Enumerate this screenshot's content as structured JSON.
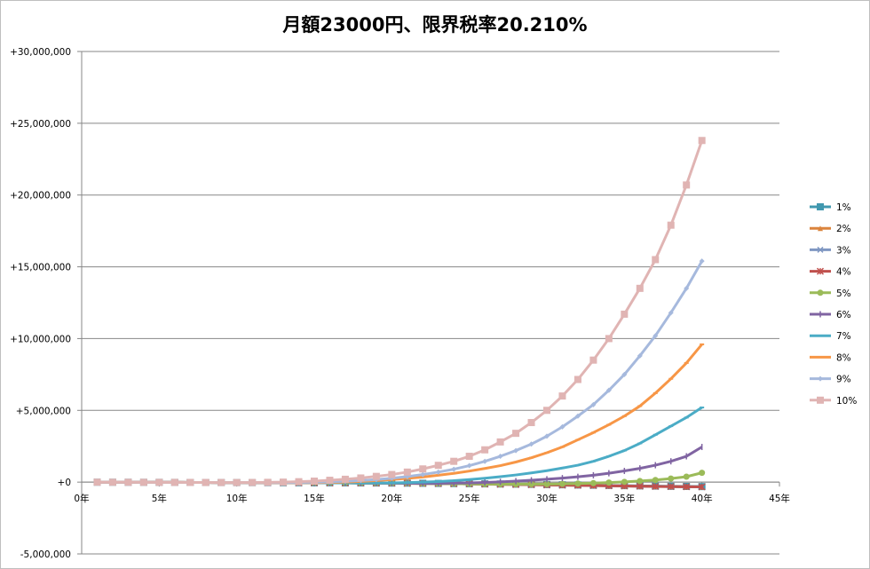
{
  "chart_data": {
    "type": "line",
    "title": "月額23000円、限界税率20.210%",
    "x": [
      1,
      2,
      3,
      4,
      5,
      6,
      7,
      8,
      9,
      10,
      11,
      12,
      13,
      14,
      15,
      16,
      17,
      18,
      19,
      20,
      21,
      22,
      23,
      24,
      25,
      26,
      27,
      28,
      29,
      30,
      31,
      32,
      33,
      34,
      35,
      36,
      37,
      38,
      39,
      40
    ],
    "xlim": [
      0,
      45
    ],
    "x_ticks": [
      0,
      5,
      10,
      15,
      20,
      25,
      30,
      35,
      40,
      45
    ],
    "x_tick_labels": [
      "0年",
      "5年",
      "10年",
      "15年",
      "20年",
      "25年",
      "30年",
      "35年",
      "40年",
      "45年"
    ],
    "ylim": [
      -5000000,
      30000000
    ],
    "y_ticks": [
      -5000000,
      0,
      5000000,
      10000000,
      15000000,
      20000000,
      25000000,
      30000000
    ],
    "y_tick_labels": [
      "-5,000,000",
      "+0",
      "+5,000,000",
      "+10,000,000",
      "+15,000,000",
      "+20,000,000",
      "+25,000,000",
      "+30,000,000"
    ],
    "grid": "horizontal",
    "legend_position": "right",
    "series": [
      {
        "name": "1%",
        "color": "#4198AF",
        "marker": "square",
        "values": [
          -3000,
          -6000,
          -9000,
          -12000,
          -15000,
          -18000,
          -21000,
          -24000,
          -27000,
          -30000,
          -33000,
          -36000,
          -39000,
          -42000,
          -45000,
          -48000,
          -51000,
          -55000,
          -60000,
          -65000,
          -70000,
          -80000,
          -90000,
          -100000,
          -110000,
          -120000,
          -130000,
          -140000,
          -155000,
          -170000,
          -185000,
          -200000,
          -215000,
          -230000,
          -245000,
          -260000,
          -275000,
          -290000,
          -300000,
          -310000
        ]
      },
      {
        "name": "2%",
        "color": "#DB843D",
        "marker": "triangle",
        "values": [
          -3000,
          -6000,
          -9000,
          -12000,
          -15000,
          -18000,
          -21000,
          -24000,
          -27000,
          -30000,
          -33000,
          -36000,
          -39000,
          -42000,
          -45000,
          -50000,
          -55000,
          -60000,
          -65000,
          -70000,
          -80000,
          -90000,
          -100000,
          -110000,
          -120000,
          -135000,
          -150000,
          -165000,
          -180000,
          -195000,
          -210000,
          -225000,
          -240000,
          -255000,
          -270000,
          -285000,
          -300000,
          -310000,
          -320000,
          -330000
        ]
      },
      {
        "name": "3%",
        "color": "#7F97C2",
        "marker": "x",
        "values": [
          -3000,
          -6000,
          -9000,
          -12000,
          -15000,
          -18000,
          -21000,
          -24000,
          -27000,
          -30000,
          -33000,
          -36000,
          -39000,
          -42000,
          -45000,
          -50000,
          -55000,
          -60000,
          -65000,
          -70000,
          -80000,
          -90000,
          -100000,
          -110000,
          -120000,
          -135000,
          -150000,
          -165000,
          -180000,
          -195000,
          -210000,
          -225000,
          -240000,
          -255000,
          -270000,
          -285000,
          -300000,
          -310000,
          -320000,
          -330000
        ]
      },
      {
        "name": "4%",
        "color": "#C0504D",
        "marker": "star",
        "values": [
          -3000,
          -6000,
          -9000,
          -12000,
          -15000,
          -18000,
          -21000,
          -24000,
          -27000,
          -30000,
          -33000,
          -36000,
          -39000,
          -42000,
          -45000,
          -50000,
          -55000,
          -60000,
          -65000,
          -70000,
          -80000,
          -90000,
          -100000,
          -110000,
          -120000,
          -135000,
          -150000,
          -165000,
          -180000,
          -195000,
          -210000,
          -225000,
          -240000,
          -255000,
          -270000,
          -285000,
          -300000,
          -310000,
          -320000,
          -330000
        ]
      },
      {
        "name": "5%",
        "color": "#9BBB59",
        "marker": "circle",
        "values": [
          -3000,
          -6000,
          -9000,
          -12000,
          -15000,
          -18000,
          -21000,
          -24000,
          -27000,
          -30000,
          -33000,
          -36000,
          -39000,
          -42000,
          -45000,
          -50000,
          -55000,
          -60000,
          -65000,
          -70000,
          -80000,
          -90000,
          -100000,
          -110000,
          -120000,
          -130000,
          -135000,
          -140000,
          -140000,
          -135000,
          -120000,
          -100000,
          -70000,
          -30000,
          20000,
          80000,
          150000,
          250000,
          380000,
          650000
        ]
      },
      {
        "name": "6%",
        "color": "#8064A2",
        "marker": "plus",
        "values": [
          -3000,
          -6000,
          -9000,
          -12000,
          -15000,
          -18000,
          -21000,
          -24000,
          -27000,
          -30000,
          -33000,
          -36000,
          -39000,
          -42000,
          -45000,
          -50000,
          -55000,
          -60000,
          -65000,
          -70000,
          -75000,
          -80000,
          -80000,
          -70000,
          -50000,
          -20000,
          20000,
          70000,
          130000,
          200000,
          280000,
          370000,
          480000,
          620000,
          780000,
          960000,
          1180000,
          1450000,
          1800000,
          2450000
        ]
      },
      {
        "name": "7%",
        "color": "#4BACC6",
        "marker": "dash",
        "values": [
          -3000,
          -6000,
          -9000,
          -12000,
          -15000,
          -18000,
          -21000,
          -24000,
          -27000,
          -30000,
          -33000,
          -36000,
          -39000,
          -42000,
          -45000,
          -50000,
          -55000,
          -60000,
          -60000,
          -50000,
          -30000,
          0,
          40000,
          100000,
          180000,
          270000,
          380000,
          500000,
          640000,
          800000,
          980000,
          1180000,
          1450000,
          1800000,
          2200000,
          2700000,
          3300000,
          3900000,
          4500000,
          5200000
        ]
      },
      {
        "name": "8%",
        "color": "#F79646",
        "marker": "dash",
        "values": [
          -3000,
          -6000,
          -9000,
          -12000,
          -15000,
          -18000,
          -21000,
          -24000,
          -27000,
          -30000,
          -33000,
          -36000,
          -39000,
          -40000,
          -35000,
          -20000,
          0,
          50000,
          110000,
          180000,
          260000,
          360000,
          480000,
          610000,
          770000,
          950000,
          1150000,
          1400000,
          1700000,
          2050000,
          2450000,
          2950000,
          3450000,
          4000000,
          4600000,
          5300000,
          6200000,
          7200000,
          8300000,
          9600000
        ]
      },
      {
        "name": "9%",
        "color": "#A6B9DD",
        "marker": "diamond",
        "values": [
          -3000,
          -6000,
          -9000,
          -12000,
          -15000,
          -18000,
          -21000,
          -24000,
          -27000,
          -30000,
          -33000,
          -33000,
          -28000,
          -20000,
          -5000,
          20000,
          60000,
          110000,
          180000,
          270000,
          390000,
          530000,
          700000,
          900000,
          1150000,
          1450000,
          1800000,
          2200000,
          2650000,
          3200000,
          3850000,
          4600000,
          5400000,
          6400000,
          7500000,
          8800000,
          10200000,
          11800000,
          13500000,
          15400000
        ]
      },
      {
        "name": "10%",
        "color": "#E0B4B3",
        "marker": "square",
        "values": [
          -3000,
          -6000,
          -9000,
          -12000,
          -15000,
          -18000,
          -21000,
          -24000,
          -27000,
          -28000,
          -25000,
          -15000,
          0,
          30000,
          70000,
          130000,
          200000,
          290000,
          400000,
          530000,
          700000,
          920000,
          1170000,
          1450000,
          1800000,
          2250000,
          2800000,
          3400000,
          4150000,
          5000000,
          6000000,
          7150000,
          8500000,
          10000000,
          11700000,
          13500000,
          15500000,
          17900000,
          20700000,
          23800000
        ]
      }
    ]
  }
}
